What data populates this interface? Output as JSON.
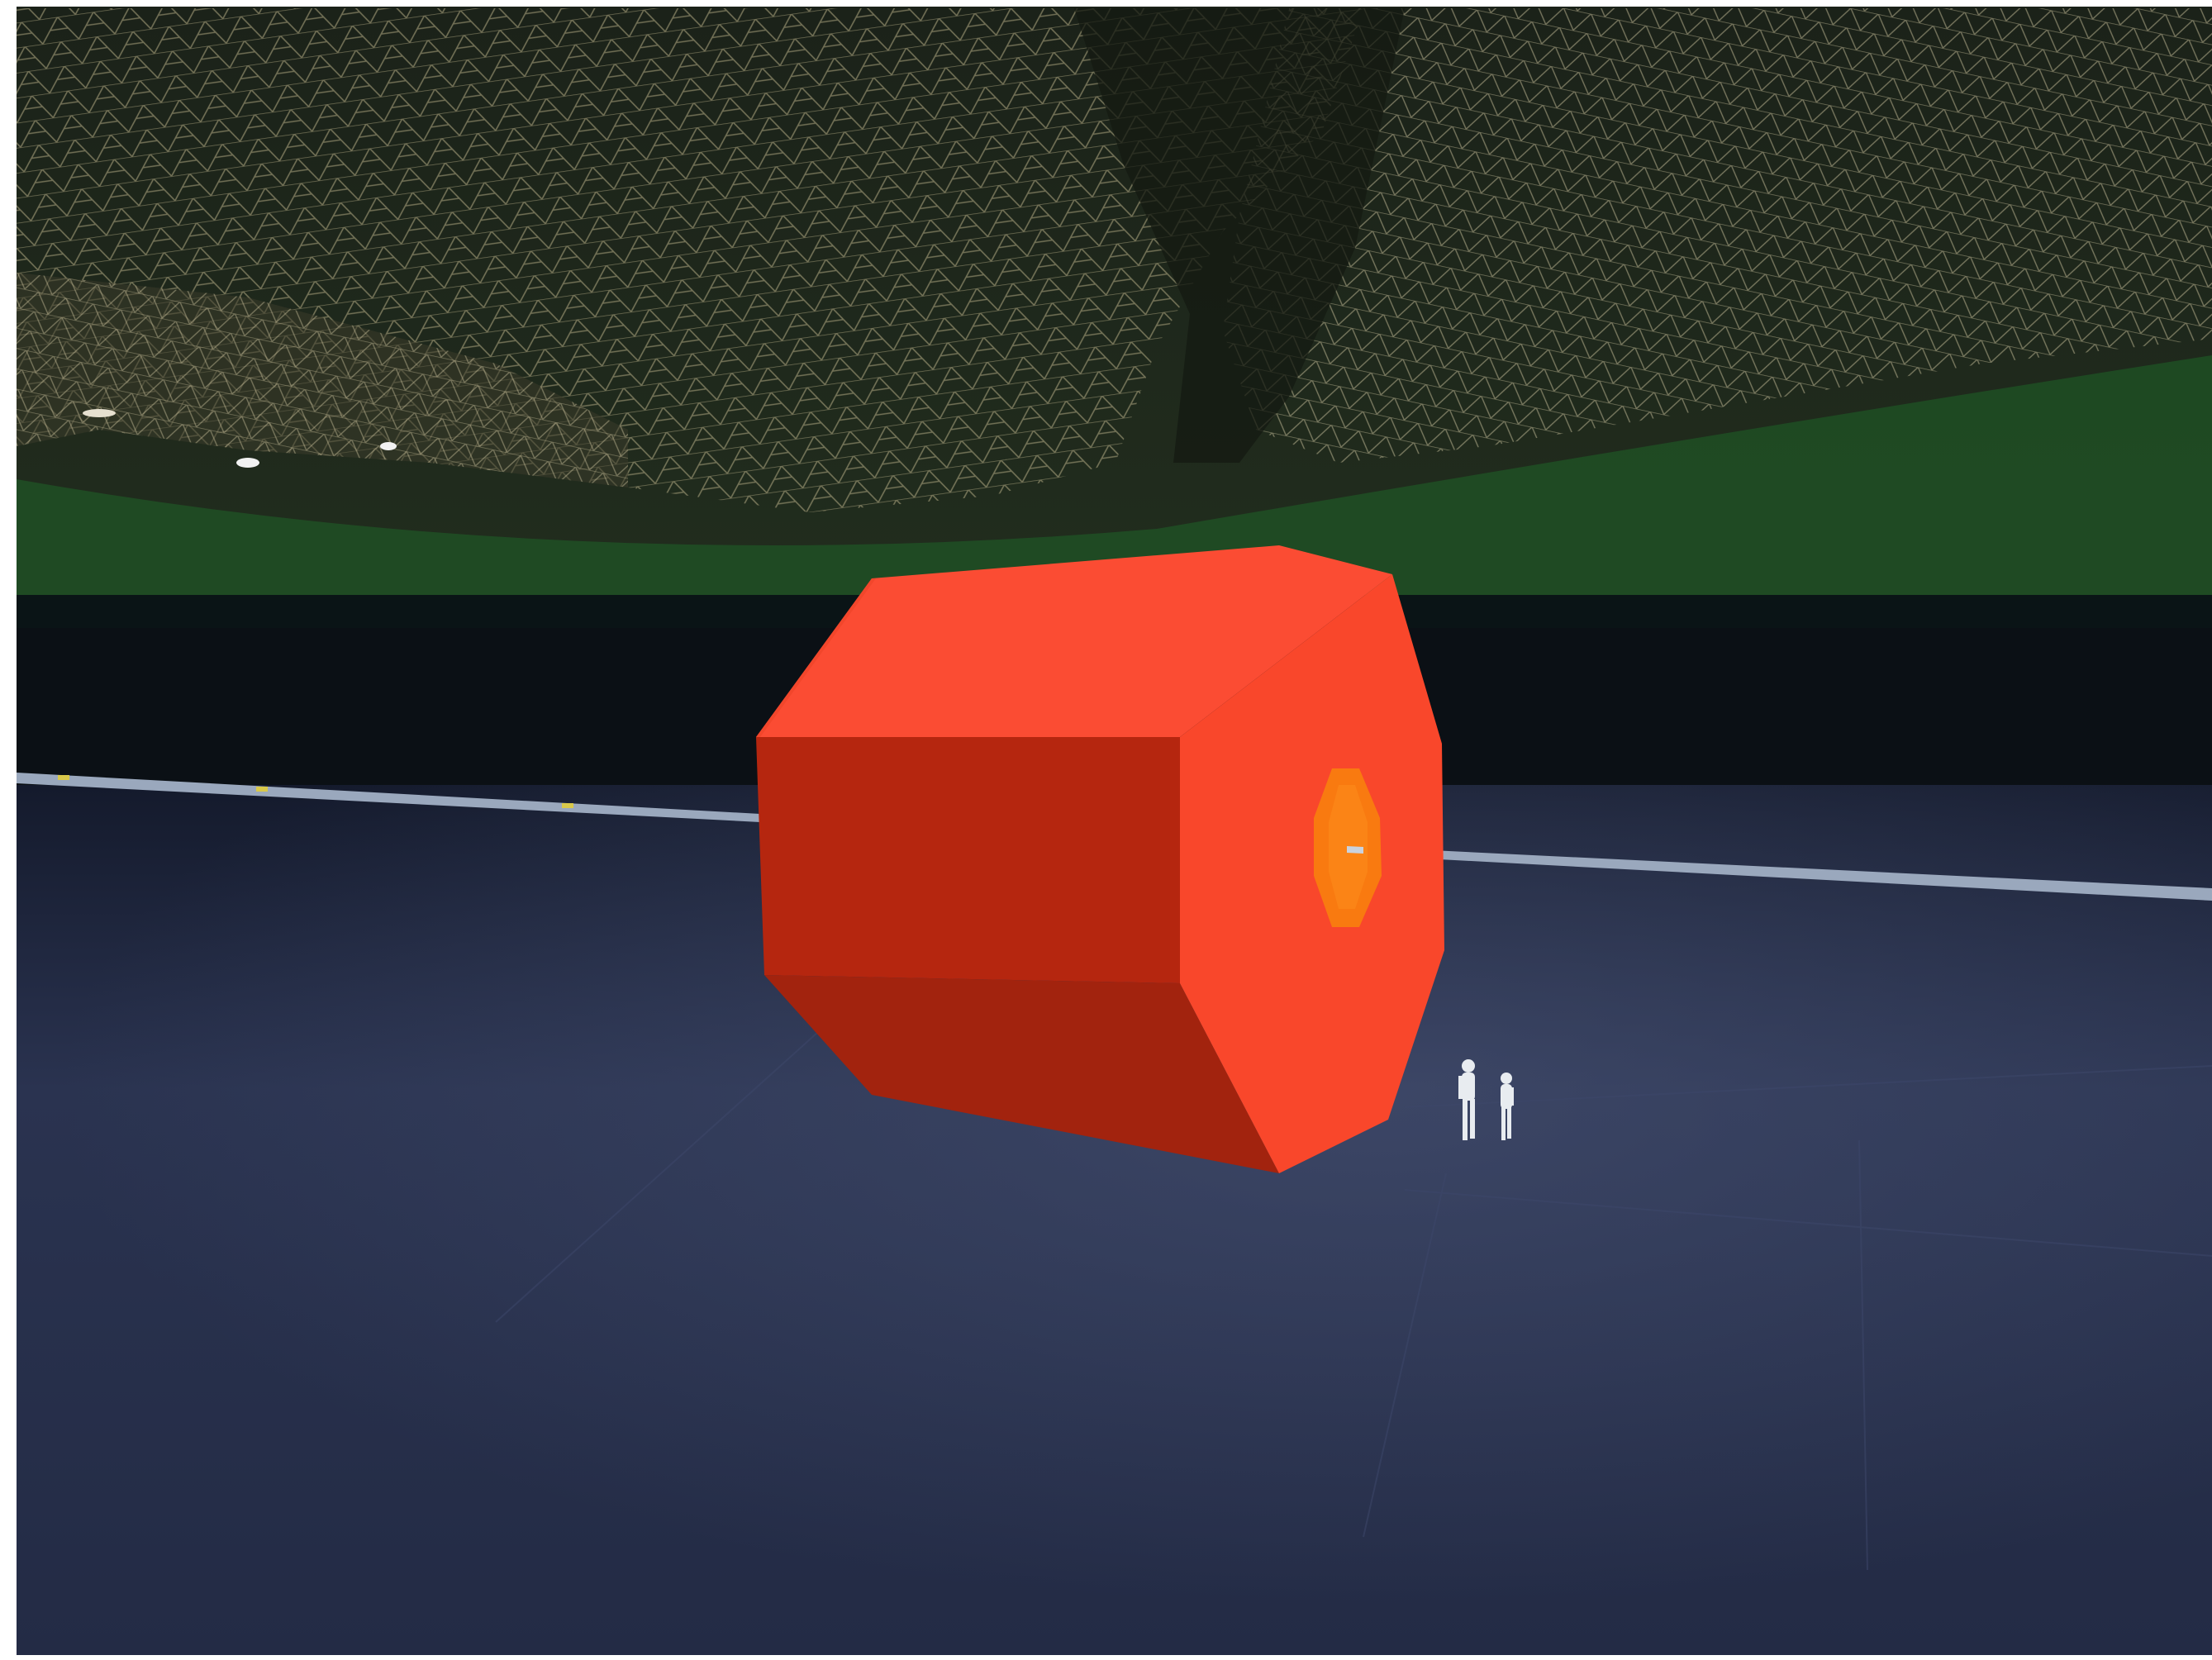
{
  "scene": {
    "type": "3d-viewport",
    "description_visible_text": [],
    "objects": [
      {
        "name": "detector-barrel",
        "shape": "octagonal-prism",
        "color": "#F04A2A"
      },
      {
        "name": "detector-inner-core",
        "shape": "octagon",
        "color": "#F97A10"
      },
      {
        "name": "beam-pipe",
        "color": "#8FA0B6"
      },
      {
        "name": "human-figures",
        "count": 2,
        "color": "#E8ECF0"
      },
      {
        "name": "cavern-ceiling-mesh",
        "color": "#B8AE86"
      },
      {
        "name": "cavern-floor",
        "color": "#2A3350"
      }
    ],
    "colors": {
      "barrel_top": "#FB4C33",
      "barrel_side": "#B5260F",
      "barrel_bottom": "#A2230E",
      "barrel_end": "#F9472B",
      "core": "#F97A10",
      "ceiling_dark": "#1C2418",
      "horizon_green": "#1E5A26",
      "floor": "#28304A"
    }
  }
}
